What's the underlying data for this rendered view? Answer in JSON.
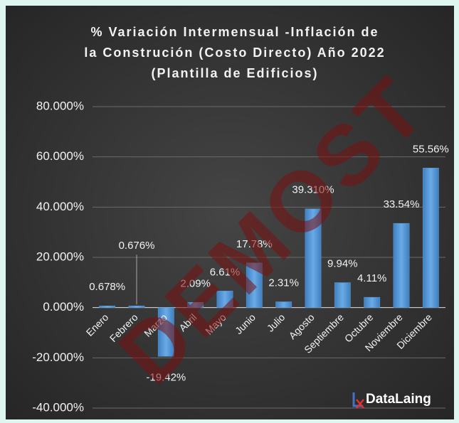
{
  "chart_data": {
    "type": "bar",
    "title": [
      "% Variación Intermensual -Inflación de",
      "la Construción (Costo Directo) Año 2022",
      "(Plantilla de Edificios)"
    ],
    "categories": [
      "Enero",
      "Febrero",
      "Marzo",
      "Abril",
      "Mayo",
      "Junio",
      "Julio",
      "Agosto",
      "Septiembre",
      "Octubre",
      "Noviembre",
      "Diciembre"
    ],
    "values": [
      0.678,
      0.676,
      -19.42,
      2.09,
      6.61,
      17.78,
      2.31,
      39.31,
      9.94,
      4.11,
      33.54,
      55.56
    ],
    "value_labels": [
      "0.678%",
      "0.676%",
      "-19.42%",
      "2.09%",
      "6.61%",
      "17.78%",
      "2.31%",
      "39.310%",
      "9.94%",
      "4.11%",
      "33.54%",
      "55.56%"
    ],
    "color": "#5b9bd5",
    "ylim": [
      -40,
      80
    ],
    "yticks": [
      {
        "value": -40,
        "label": "-40.000%"
      },
      {
        "value": -20,
        "label": "-20.000%"
      },
      {
        "value": 0,
        "label": "0.000%"
      },
      {
        "value": 20,
        "label": "20.000%"
      },
      {
        "value": 40,
        "label": "40.000%"
      },
      {
        "value": 60,
        "label": "60.000%"
      },
      {
        "value": 80,
        "label": "80.000%"
      }
    ],
    "grid": true,
    "logo": "DataLaing",
    "watermark": "DEMOST"
  }
}
